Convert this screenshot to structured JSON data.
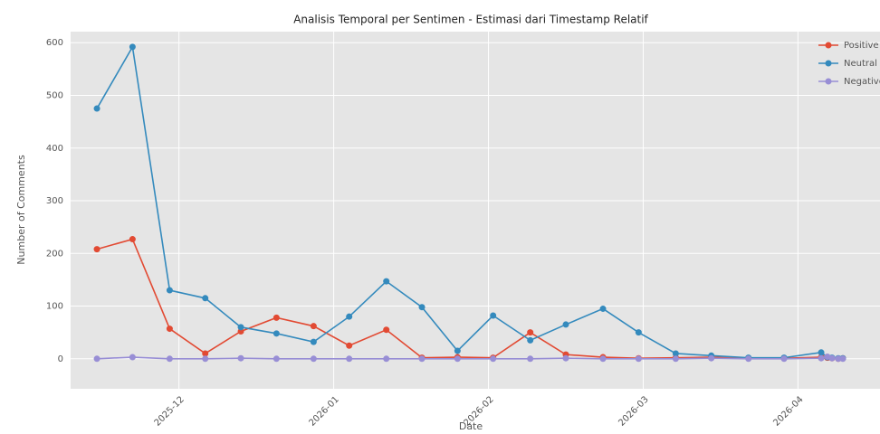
{
  "chart_data": {
    "type": "line",
    "title": "Analisis Temporal per Sentimen - Estimasi dari Timestamp Relatif",
    "xlabel": "Date",
    "ylabel": "Number of Comments",
    "x": [
      -0.53,
      -0.3,
      -0.06,
      0.17,
      0.4,
      0.63,
      0.87,
      1.1,
      1.34,
      1.57,
      1.8,
      2.03,
      2.27,
      2.5,
      2.74,
      2.97,
      3.21,
      3.44,
      3.68,
      3.91,
      4.15,
      4.19,
      4.22,
      4.26,
      4.29
    ],
    "series": [
      {
        "name": "Positive",
        "color": "#e24a33",
        "values": [
          208,
          227,
          57,
          10,
          52,
          78,
          62,
          25,
          55,
          2,
          3,
          2,
          50,
          8,
          3,
          1,
          2,
          3,
          1,
          1,
          3,
          2,
          1,
          0,
          1
        ]
      },
      {
        "name": "Neutral",
        "color": "#348abd",
        "values": [
          475,
          592,
          130,
          115,
          60,
          48,
          32,
          80,
          147,
          98,
          15,
          82,
          35,
          65,
          95,
          50,
          10,
          6,
          2,
          2,
          12,
          3,
          2,
          1,
          1
        ]
      },
      {
        "name": "Negative",
        "color": "#988ed5",
        "values": [
          0,
          3,
          0,
          0,
          1,
          0,
          0,
          0,
          0,
          0,
          0,
          0,
          0,
          1,
          0,
          0,
          0,
          1,
          0,
          0,
          1,
          4,
          1,
          0,
          0
        ]
      }
    ],
    "xlim": [
      -0.7,
      4.53
    ],
    "xticks": [
      {
        "value": 0,
        "label": "2025-12"
      },
      {
        "value": 1,
        "label": "2026-01"
      },
      {
        "value": 2,
        "label": "2026-02"
      },
      {
        "value": 3,
        "label": "2026-03"
      },
      {
        "value": 4,
        "label": "2026-04"
      }
    ],
    "ylim": [
      -57,
      621
    ],
    "yticks": [
      0,
      100,
      200,
      300,
      400,
      500,
      600
    ],
    "grid": true,
    "legend": "upper right"
  }
}
